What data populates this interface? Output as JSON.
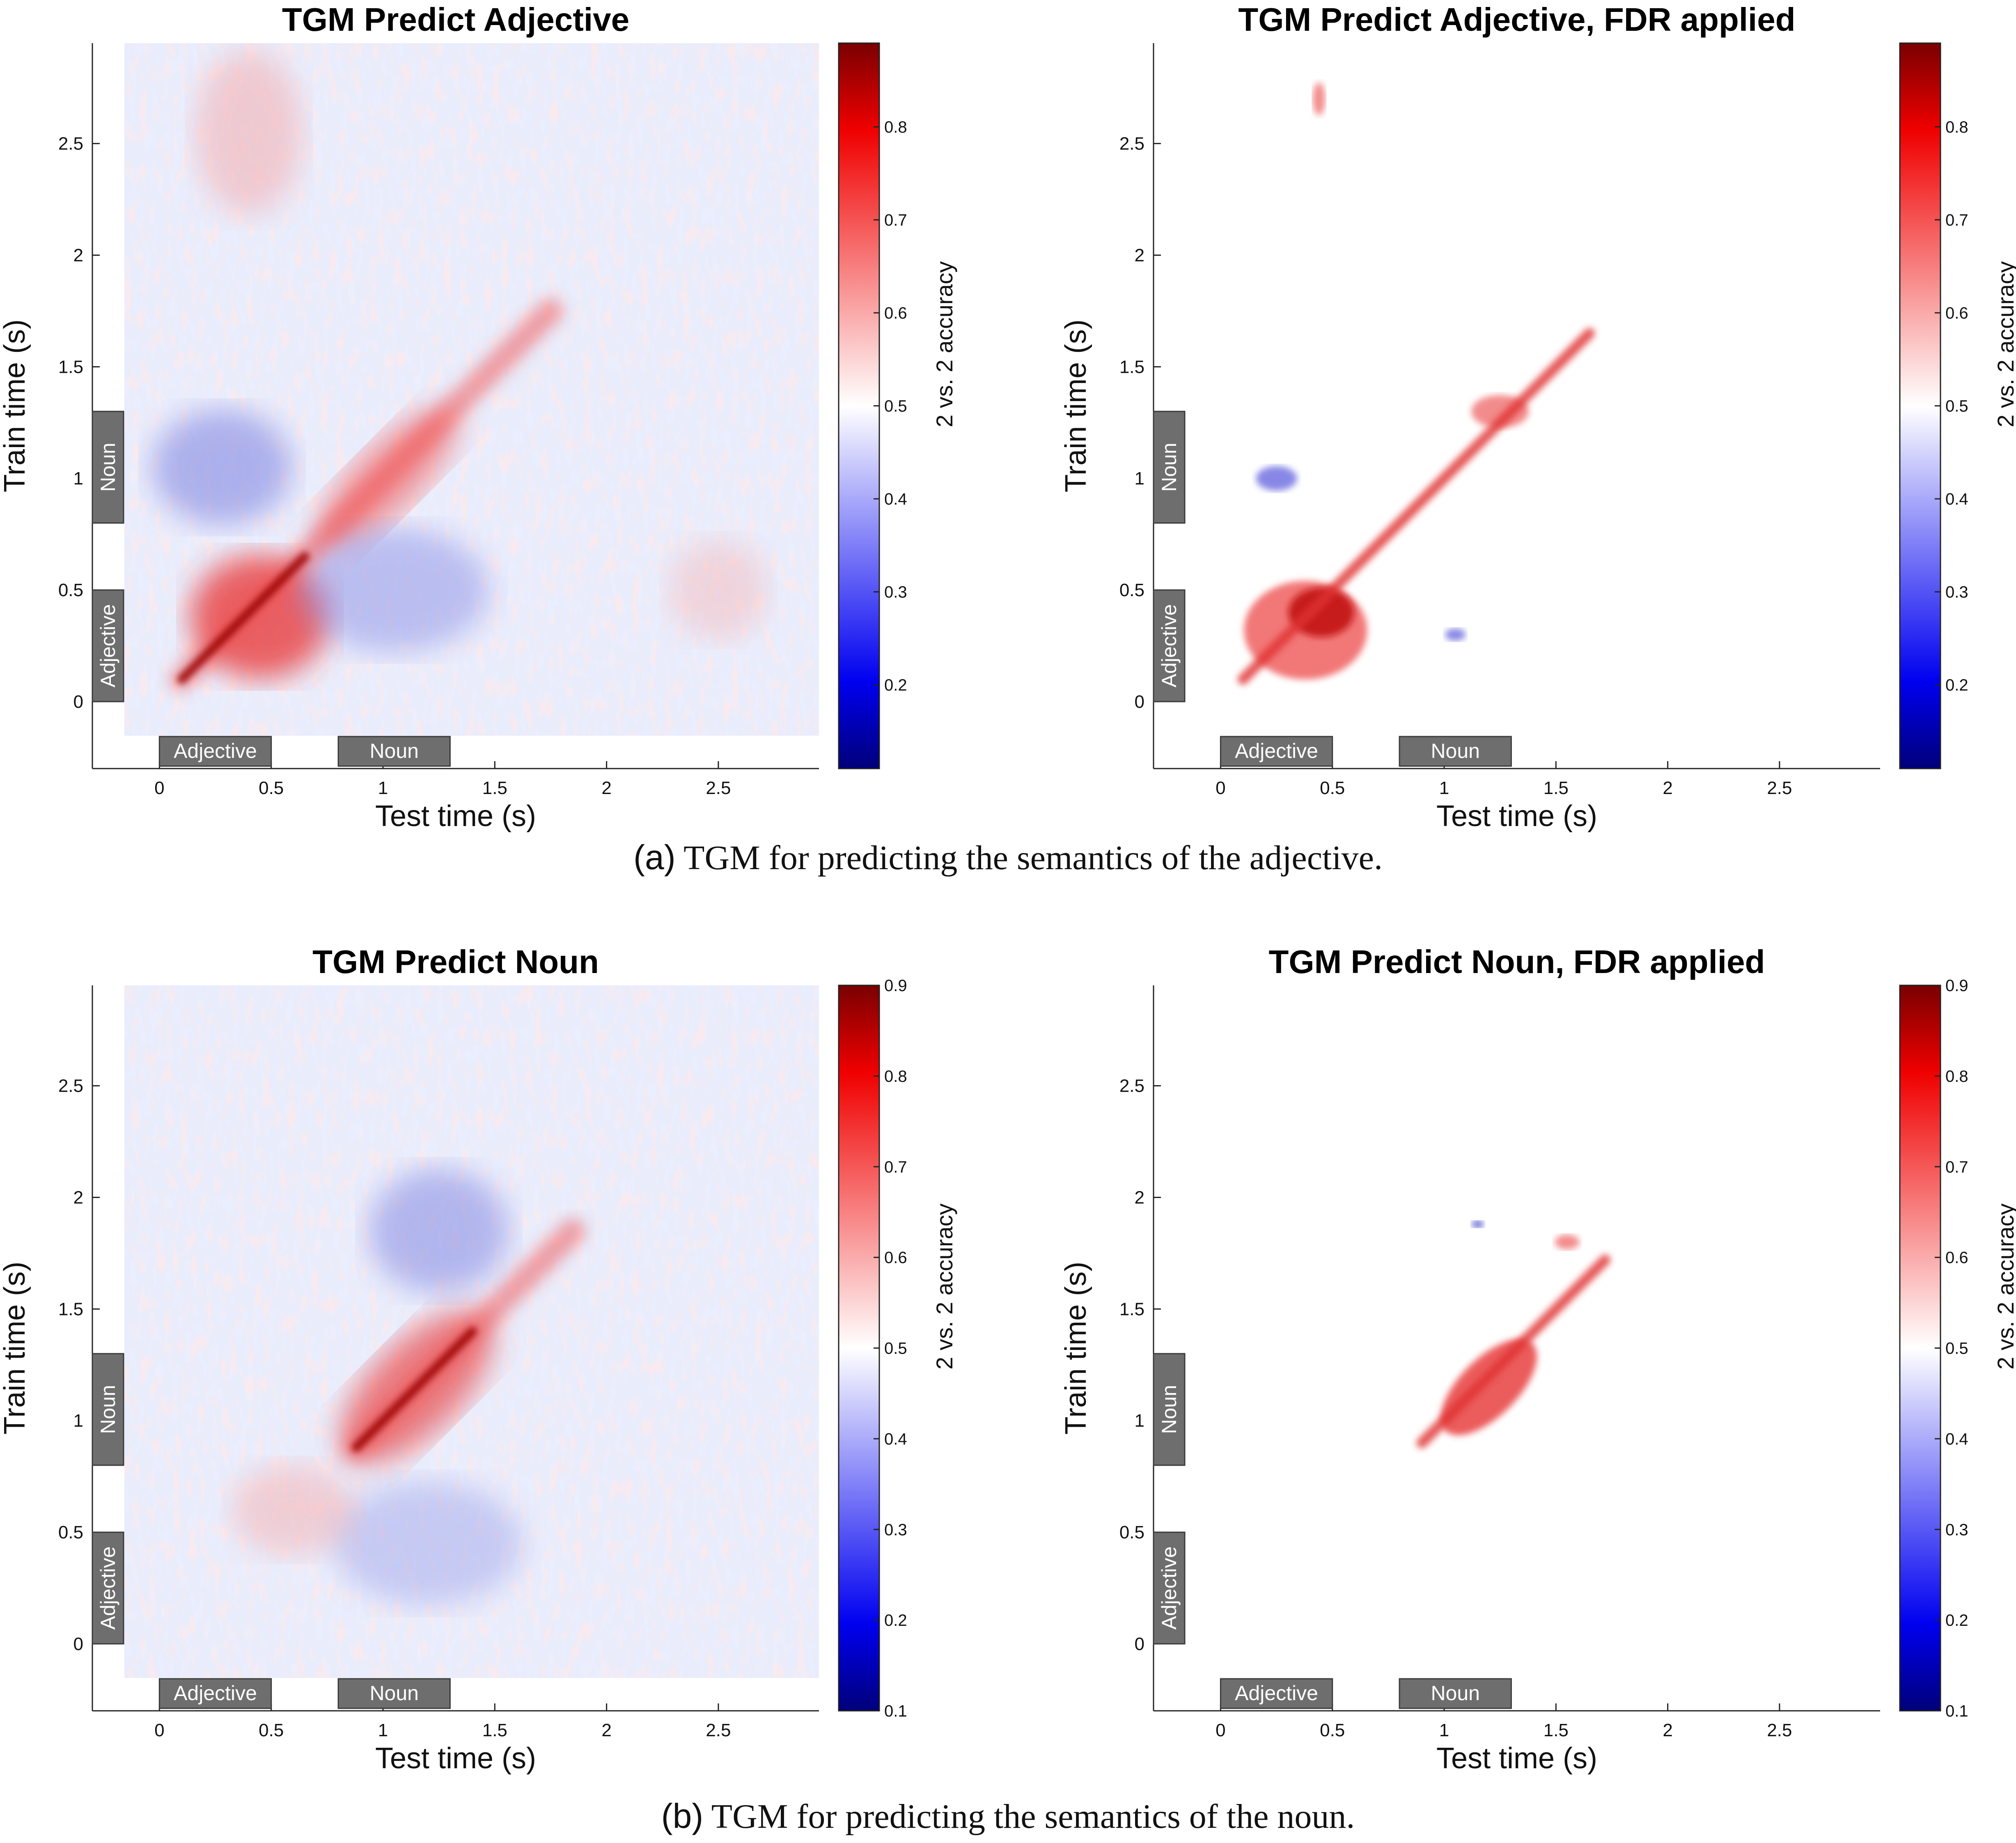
{
  "figure": {
    "caption_a_label": "(a)",
    "caption_a_text": " TGM for predicting the semantics of the adjective.",
    "caption_b_label": "(b)",
    "caption_b_text": " TGM for predicting the semantics of the noun."
  },
  "chart_data": [
    {
      "type": "heatmap",
      "title": "TGM Predict Adjective",
      "xlabel": "Test time (s)",
      "ylabel": "Train time (s)",
      "colorbar_label": "2 vs. 2 accuracy",
      "xlim": [
        -0.3,
        2.95
      ],
      "ylim": [
        -0.3,
        2.95
      ],
      "xticks": [
        0,
        0.5,
        1,
        1.5,
        2,
        2.5
      ],
      "xtick_labels": [
        "0",
        "0.5",
        "1",
        "1.5",
        "2",
        "2.5"
      ],
      "yticks": [
        0,
        0.5,
        1,
        1.5,
        2,
        2.5
      ],
      "ytick_labels": [
        "0",
        "0.5",
        "1",
        "1.5",
        "2",
        "2.5"
      ],
      "clim": [
        0.11,
        0.89
      ],
      "colorbar_ticks": [
        0.2,
        0.3,
        0.4,
        0.5,
        0.6,
        0.7,
        0.8
      ],
      "colorbar_tick_labels": [
        "0.2",
        "0.3",
        "0.4",
        "0.5",
        "0.6",
        "0.7",
        "0.8"
      ],
      "fdr_applied": false,
      "stimulus_markers": [
        {
          "label": "Adjective",
          "start": 0,
          "end": 0.5
        },
        {
          "label": "Noun",
          "start": 0.8,
          "end": 1.3
        }
      ]
    },
    {
      "type": "heatmap",
      "title": "TGM Predict Adjective, FDR applied",
      "xlabel": "Test time (s)",
      "ylabel": "Train time (s)",
      "colorbar_label": "2 vs. 2 accuracy",
      "xlim": [
        -0.3,
        2.95
      ],
      "ylim": [
        -0.3,
        2.95
      ],
      "xticks": [
        0,
        0.5,
        1,
        1.5,
        2,
        2.5
      ],
      "xtick_labels": [
        "0",
        "0.5",
        "1",
        "1.5",
        "2",
        "2.5"
      ],
      "yticks": [
        0,
        0.5,
        1,
        1.5,
        2,
        2.5
      ],
      "ytick_labels": [
        "0",
        "0.5",
        "1",
        "1.5",
        "2",
        "2.5"
      ],
      "clim": [
        0.11,
        0.89
      ],
      "colorbar_ticks": [
        0.2,
        0.3,
        0.4,
        0.5,
        0.6,
        0.7,
        0.8
      ],
      "colorbar_tick_labels": [
        "0.2",
        "0.3",
        "0.4",
        "0.5",
        "0.6",
        "0.7",
        "0.8"
      ],
      "fdr_applied": true,
      "stimulus_markers": [
        {
          "label": "Adjective",
          "start": 0,
          "end": 0.5
        },
        {
          "label": "Noun",
          "start": 0.8,
          "end": 1.3
        }
      ]
    },
    {
      "type": "heatmap",
      "title": "TGM Predict Noun",
      "xlabel": "Test time (s)",
      "ylabel": "Train time (s)",
      "colorbar_label": "2 vs. 2 accuracy",
      "xlim": [
        -0.3,
        2.95
      ],
      "ylim": [
        -0.3,
        2.95
      ],
      "xticks": [
        0,
        0.5,
        1,
        1.5,
        2,
        2.5
      ],
      "xtick_labels": [
        "0",
        "0.5",
        "1",
        "1.5",
        "2",
        "2.5"
      ],
      "yticks": [
        0,
        0.5,
        1,
        1.5,
        2,
        2.5
      ],
      "ytick_labels": [
        "0",
        "0.5",
        "1",
        "1.5",
        "2",
        "2.5"
      ],
      "clim": [
        0.1,
        0.9
      ],
      "colorbar_ticks": [
        0.1,
        0.2,
        0.3,
        0.4,
        0.5,
        0.6,
        0.7,
        0.8,
        0.9
      ],
      "colorbar_tick_labels": [
        "0.1",
        "0.2",
        "0.3",
        "0.4",
        "0.5",
        "0.6",
        "0.7",
        "0.8",
        "0.9"
      ],
      "fdr_applied": false,
      "stimulus_markers": [
        {
          "label": "Adjective",
          "start": 0,
          "end": 0.5
        },
        {
          "label": "Noun",
          "start": 0.8,
          "end": 1.3
        }
      ]
    },
    {
      "type": "heatmap",
      "title": "TGM Predict Noun, FDR applied",
      "xlabel": "Test time (s)",
      "ylabel": "Train time (s)",
      "colorbar_label": "2 vs. 2 accuracy",
      "xlim": [
        -0.3,
        2.95
      ],
      "ylim": [
        -0.3,
        2.95
      ],
      "xticks": [
        0,
        0.5,
        1,
        1.5,
        2,
        2.5
      ],
      "xtick_labels": [
        "0",
        "0.5",
        "1",
        "1.5",
        "2",
        "2.5"
      ],
      "yticks": [
        0,
        0.5,
        1,
        1.5,
        2,
        2.5
      ],
      "ytick_labels": [
        "0",
        "0.5",
        "1",
        "1.5",
        "2",
        "2.5"
      ],
      "clim": [
        0.1,
        0.9
      ],
      "colorbar_ticks": [
        0.1,
        0.2,
        0.3,
        0.4,
        0.5,
        0.6,
        0.7,
        0.8,
        0.9
      ],
      "colorbar_tick_labels": [
        "0.1",
        "0.2",
        "0.3",
        "0.4",
        "0.5",
        "0.6",
        "0.7",
        "0.8",
        "0.9"
      ],
      "fdr_applied": true,
      "stimulus_markers": [
        {
          "label": "Adjective",
          "start": 0,
          "end": 0.5
        },
        {
          "label": "Noun",
          "start": 0.8,
          "end": 1.3
        }
      ]
    }
  ]
}
